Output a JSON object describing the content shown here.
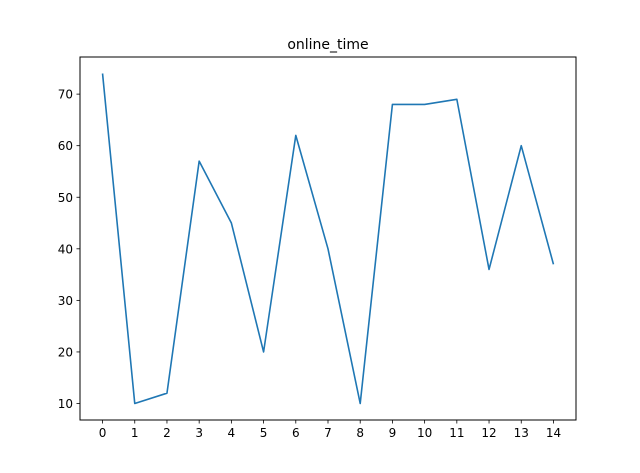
{
  "chart_data": {
    "type": "line",
    "title": "online_time",
    "xlabel": "",
    "ylabel": "",
    "x": [
      0,
      1,
      2,
      3,
      4,
      5,
      6,
      7,
      8,
      9,
      10,
      11,
      12,
      13,
      14
    ],
    "series": [
      {
        "values": [
          74,
          10,
          12,
          57,
          45,
          20,
          62,
          40,
          10,
          68,
          68,
          69,
          36,
          60,
          37
        ]
      }
    ],
    "xticks": [
      0,
      1,
      2,
      3,
      4,
      5,
      6,
      7,
      8,
      9,
      10,
      11,
      12,
      13,
      14
    ],
    "yticks": [
      10,
      20,
      30,
      40,
      50,
      60,
      70
    ],
    "xlim": [
      -0.7,
      14.7
    ],
    "ylim": [
      6.8,
      77.2
    ],
    "grid": false,
    "line_color": "#1f77b4"
  }
}
